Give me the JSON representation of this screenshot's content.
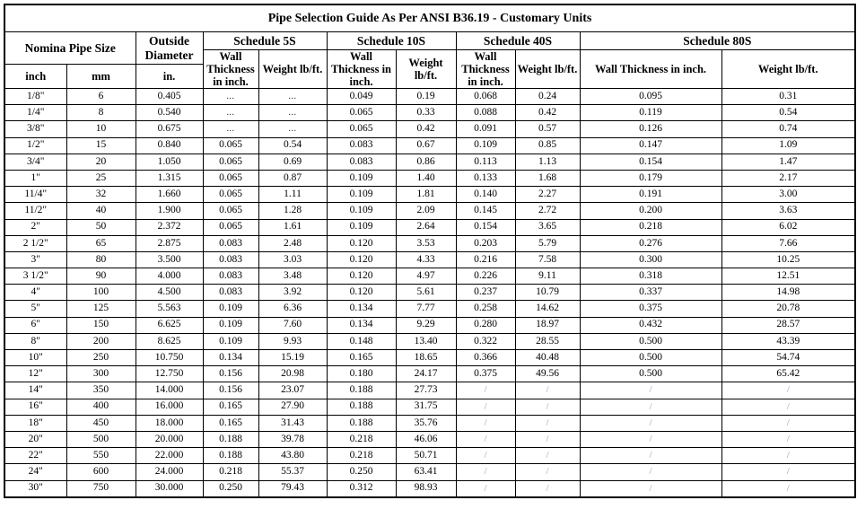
{
  "table": {
    "title": "Pipe Selection Guide As Per ANSI B36.19 - Customary Units",
    "header": {
      "nominal_pipe_size": "Nomina Pipe Size",
      "size_unit_inch": "inch",
      "size_unit_mm": "mm",
      "outside_diameter": "Outside Diameter",
      "outside_diameter_unit": "in.",
      "schedules": [
        "Schedule 5S",
        "Schedule 10S",
        "Schedule 40S",
        "Schedule 80S"
      ],
      "wall_thickness_label": "Wall Thickness in inch.",
      "weight_label": "Weight lb/ft."
    },
    "placeholders": {
      "no_data_dots": "...",
      "not_applicable_slash": "/"
    },
    "columns": [
      "inch",
      "mm",
      "outside_diameter_in",
      "sch5s_wall",
      "sch5s_weight",
      "sch10s_wall",
      "sch10s_weight",
      "sch40s_wall",
      "sch40s_weight",
      "sch80s_wall",
      "sch80s_weight"
    ],
    "rows": [
      [
        "1/8\"",
        "6",
        "0.405",
        "...",
        "...",
        "0.049",
        "0.19",
        "0.068",
        "0.24",
        "0.095",
        "0.31"
      ],
      [
        "1/4\"",
        "8",
        "0.540",
        "...",
        "...",
        "0.065",
        "0.33",
        "0.088",
        "0.42",
        "0.119",
        "0.54"
      ],
      [
        "3/8\"",
        "10",
        "0.675",
        "...",
        "...",
        "0.065",
        "0.42",
        "0.091",
        "0.57",
        "0.126",
        "0.74"
      ],
      [
        "1/2\"",
        "15",
        "0.840",
        "0.065",
        "0.54",
        "0.083",
        "0.67",
        "0.109",
        "0.85",
        "0.147",
        "1.09"
      ],
      [
        "3/4\"",
        "20",
        "1.050",
        "0.065",
        "0.69",
        "0.083",
        "0.86",
        "0.113",
        "1.13",
        "0.154",
        "1.47"
      ],
      [
        "1\"",
        "25",
        "1.315",
        "0.065",
        "0.87",
        "0.109",
        "1.40",
        "0.133",
        "1.68",
        "0.179",
        "2.17"
      ],
      [
        "11/4\"",
        "32",
        "1.660",
        "0.065",
        "1.11",
        "0.109",
        "1.81",
        "0.140",
        "2.27",
        "0.191",
        "3.00"
      ],
      [
        "11/2\"",
        "40",
        "1.900",
        "0.065",
        "1.28",
        "0.109",
        "2.09",
        "0.145",
        "2.72",
        "0.200",
        "3.63"
      ],
      [
        "2\"",
        "50",
        "2.372",
        "0.065",
        "1.61",
        "0.109",
        "2.64",
        "0.154",
        "3.65",
        "0.218",
        "6.02"
      ],
      [
        "2 1/2\"",
        "65",
        "2.875",
        "0.083",
        "2.48",
        "0.120",
        "3.53",
        "0.203",
        "5.79",
        "0.276",
        "7.66"
      ],
      [
        "3\"",
        "80",
        "3.500",
        "0.083",
        "3.03",
        "0.120",
        "4.33",
        "0.216",
        "7.58",
        "0.300",
        "10.25"
      ],
      [
        "3 1/2\"",
        "90",
        "4.000",
        "0.083",
        "3.48",
        "0.120",
        "4.97",
        "0.226",
        "9.11",
        "0.318",
        "12.51"
      ],
      [
        "4\"",
        "100",
        "4.500",
        "0.083",
        "3.92",
        "0.120",
        "5.61",
        "0.237",
        "10.79",
        "0.337",
        "14.98"
      ],
      [
        "5\"",
        "125",
        "5.563",
        "0.109",
        "6.36",
        "0.134",
        "7.77",
        "0.258",
        "14.62",
        "0.375",
        "20.78"
      ],
      [
        "6\"",
        "150",
        "6.625",
        "0.109",
        "7.60",
        "0.134",
        "9.29",
        "0.280",
        "18.97",
        "0.432",
        "28.57"
      ],
      [
        "8\"",
        "200",
        "8.625",
        "0.109",
        "9.93",
        "0.148",
        "13.40",
        "0.322",
        "28.55",
        "0.500",
        "43.39"
      ],
      [
        "10\"",
        "250",
        "10.750",
        "0.134",
        "15.19",
        "0.165",
        "18.65",
        "0.366",
        "40.48",
        "0.500",
        "54.74"
      ],
      [
        "12\"",
        "300",
        "12.750",
        "0.156",
        "20.98",
        "0.180",
        "24.17",
        "0.375",
        "49.56",
        "0.500",
        "65.42"
      ],
      [
        "14\"",
        "350",
        "14.000",
        "0.156",
        "23.07",
        "0.188",
        "27.73",
        "/",
        "/",
        "/",
        "/"
      ],
      [
        "16\"",
        "400",
        "16.000",
        "0.165",
        "27.90",
        "0.188",
        "31.75",
        "/",
        "/",
        "/",
        "/"
      ],
      [
        "18\"",
        "450",
        "18.000",
        "0.165",
        "31.43",
        "0.188",
        "35.76",
        "/",
        "/",
        "/",
        "/"
      ],
      [
        "20\"",
        "500",
        "20.000",
        "0.188",
        "39.78",
        "0.218",
        "46.06",
        "/",
        "/",
        "/",
        "/"
      ],
      [
        "22\"",
        "550",
        "22.000",
        "0.188",
        "43.80",
        "0.218",
        "50.71",
        "/",
        "/",
        "/",
        "/"
      ],
      [
        "24\"",
        "600",
        "24.000",
        "0.218",
        "55.37",
        "0.250",
        "63.41",
        "/",
        "/",
        "/",
        "/"
      ],
      [
        "30\"",
        "750",
        "30.000",
        "0.250",
        "79.43",
        "0.312",
        "98.93",
        "/",
        "/",
        "/",
        "/"
      ]
    ]
  },
  "colors": {
    "border": "#000000",
    "text": "#000000",
    "slash_placeholder": "#9aa2b4",
    "background": "#ffffff"
  }
}
